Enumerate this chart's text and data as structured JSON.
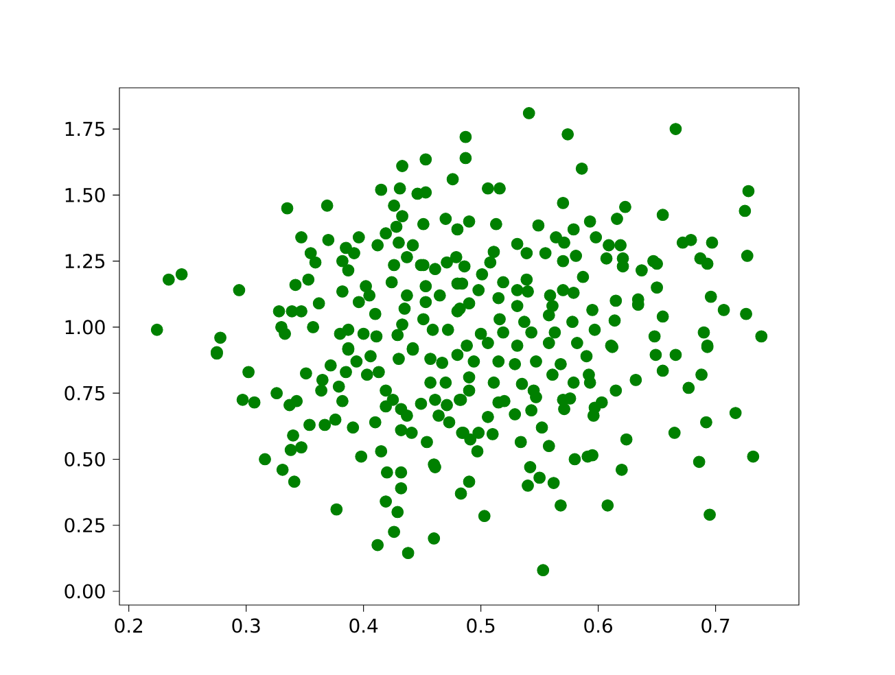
{
  "chart_data": {
    "type": "scatter",
    "color": "#008000",
    "xlim": [
      0.192,
      0.771
    ],
    "ylim": [
      -0.052,
      1.906
    ],
    "xticks": [
      0.2,
      0.3,
      0.4,
      0.5,
      0.6,
      0.7
    ],
    "yticks": [
      {
        "value": 0,
        "label": "0.00"
      },
      {
        "value": 0.25,
        "label": "0.25"
      },
      {
        "value": 0.5,
        "label": "0.50"
      },
      {
        "value": 0.75,
        "label": "0.75"
      },
      {
        "value": 1,
        "label": "1.00"
      },
      {
        "value": 1.25,
        "label": "1.25"
      },
      {
        "value": 1.5,
        "label": "1.50"
      },
      {
        "value": 1.75,
        "label": "1.75"
      }
    ],
    "x": [
      0.224,
      0.234,
      0.245,
      0.294,
      0.278,
      0.275,
      0.335,
      0.369,
      0.347,
      0.37,
      0.355,
      0.359,
      0.353,
      0.342,
      0.328,
      0.339,
      0.347,
      0.362,
      0.33,
      0.333,
      0.357,
      0.385,
      0.396,
      0.392,
      0.382,
      0.387,
      0.412,
      0.415,
      0.431,
      0.433,
      0.453,
      0.446,
      0.453,
      0.426,
      0.433,
      0.428,
      0.419,
      0.43,
      0.442,
      0.437,
      0.426,
      0.451,
      0.476,
      0.451,
      0.461,
      0.471,
      0.479,
      0.47,
      0.48,
      0.449,
      0.382,
      0.396,
      0.402,
      0.405,
      0.41,
      0.424,
      0.437,
      0.435,
      0.433,
      0.429,
      0.453,
      0.453,
      0.465,
      0.451,
      0.459,
      0.472,
      0.48,
      0.482,
      0.38,
      0.387,
      0.4,
      0.411,
      0.442,
      0.387,
      0.275,
      0.302,
      0.297,
      0.307,
      0.326,
      0.337,
      0.343,
      0.351,
      0.34,
      0.338,
      0.347,
      0.316,
      0.331,
      0.341,
      0.354,
      0.367,
      0.376,
      0.365,
      0.364,
      0.372,
      0.379,
      0.382,
      0.385,
      0.387,
      0.394,
      0.406,
      0.403,
      0.413,
      0.391,
      0.41,
      0.398,
      0.415,
      0.42,
      0.432,
      0.432,
      0.419,
      0.429,
      0.426,
      0.412,
      0.438,
      0.46,
      0.377,
      0.43,
      0.442,
      0.419,
      0.425,
      0.419,
      0.432,
      0.437,
      0.432,
      0.441,
      0.454,
      0.46,
      0.461,
      0.449,
      0.461,
      0.457,
      0.464,
      0.473,
      0.471,
      0.47,
      0.457,
      0.467,
      0.483,
      0.484,
      0.483,
      0.541,
      0.574,
      0.666,
      0.586,
      0.487,
      0.487,
      0.506,
      0.516,
      0.57,
      0.623,
      0.655,
      0.728,
      0.725,
      0.49,
      0.513,
      0.549,
      0.579,
      0.593,
      0.616,
      0.598,
      0.564,
      0.571,
      0.531,
      0.511,
      0.539,
      0.555,
      0.581,
      0.57,
      0.609,
      0.619,
      0.607,
      0.621,
      0.621,
      0.637,
      0.647,
      0.65,
      0.672,
      0.679,
      0.697,
      0.687,
      0.693,
      0.727,
      0.486,
      0.508,
      0.501,
      0.519,
      0.539,
      0.587,
      0.484,
      0.498,
      0.515,
      0.531,
      0.54,
      0.559,
      0.57,
      0.579,
      0.615,
      0.634,
      0.65,
      0.696,
      0.49,
      0.531,
      0.561,
      0.595,
      0.634,
      0.707,
      0.726,
      0.655,
      0.48,
      0.516,
      0.537,
      0.558,
      0.578,
      0.597,
      0.614,
      0.5,
      0.519,
      0.543,
      0.563,
      0.69,
      0.739,
      0.648,
      0.488,
      0.506,
      0.531,
      0.558,
      0.582,
      0.693,
      0.611,
      0.48,
      0.494,
      0.515,
      0.529,
      0.547,
      0.568,
      0.59,
      0.612,
      0.649,
      0.666,
      0.693,
      0.49,
      0.511,
      0.535,
      0.545,
      0.561,
      0.579,
      0.593,
      0.592,
      0.632,
      0.655,
      0.688,
      0.677,
      0.615,
      0.49,
      0.482,
      0.515,
      0.52,
      0.547,
      0.57,
      0.571,
      0.576,
      0.603,
      0.597,
      0.596,
      0.529,
      0.543,
      0.506,
      0.552,
      0.485,
      0.498,
      0.51,
      0.491,
      0.497,
      0.534,
      0.558,
      0.624,
      0.665,
      0.692,
      0.717,
      0.58,
      0.591,
      0.595,
      0.62,
      0.686,
      0.732,
      0.542,
      0.55,
      0.54,
      0.562,
      0.49,
      0.568,
      0.608,
      0.503,
      0.695,
      0.553
    ],
    "values": [
      0.99,
      1.18,
      1.2,
      1.14,
      0.96,
      0.905,
      1.45,
      1.46,
      1.34,
      1.33,
      1.28,
      1.245,
      1.18,
      1.16,
      1.06,
      1.06,
      1.06,
      1.09,
      1.0,
      0.975,
      1.0,
      1.3,
      1.34,
      1.28,
      1.25,
      1.215,
      1.31,
      1.52,
      1.525,
      1.61,
      1.635,
      1.505,
      1.51,
      1.46,
      1.42,
      1.38,
      1.355,
      1.32,
      1.31,
      1.265,
      1.235,
      1.39,
      1.56,
      1.235,
      1.22,
      1.245,
      1.265,
      1.41,
      1.37,
      1.235,
      1.135,
      1.095,
      1.155,
      1.12,
      1.05,
      1.17,
      1.12,
      1.07,
      1.01,
      0.97,
      1.155,
      1.095,
      1.12,
      1.03,
      0.99,
      0.99,
      1.165,
      1.07,
      0.975,
      0.99,
      0.975,
      0.965,
      0.92,
      0.92,
      0.9,
      0.83,
      0.725,
      0.715,
      0.75,
      0.705,
      0.72,
      0.825,
      0.59,
      0.535,
      0.545,
      0.5,
      0.46,
      0.415,
      0.63,
      0.63,
      0.65,
      0.8,
      0.76,
      0.855,
      0.775,
      0.72,
      0.83,
      0.915,
      0.87,
      0.89,
      0.82,
      0.83,
      0.62,
      0.64,
      0.51,
      0.53,
      0.45,
      0.45,
      0.39,
      0.34,
      0.3,
      0.225,
      0.175,
      0.145,
      0.2,
      0.31,
      0.88,
      0.915,
      0.76,
      0.725,
      0.7,
      0.69,
      0.665,
      0.61,
      0.6,
      0.565,
      0.48,
      0.47,
      0.71,
      0.725,
      0.79,
      0.665,
      0.64,
      0.705,
      0.79,
      0.88,
      0.865,
      0.725,
      0.6,
      0.37,
      1.81,
      1.73,
      1.75,
      1.6,
      1.72,
      1.64,
      1.525,
      1.525,
      1.47,
      1.455,
      1.425,
      1.515,
      1.44,
      1.4,
      1.39,
      1.385,
      1.37,
      1.4,
      1.41,
      1.34,
      1.34,
      1.32,
      1.315,
      1.285,
      1.28,
      1.28,
      1.27,
      1.25,
      1.31,
      1.31,
      1.26,
      1.26,
      1.23,
      1.215,
      1.25,
      1.24,
      1.32,
      1.33,
      1.32,
      1.26,
      1.24,
      1.27,
      1.23,
      1.245,
      1.2,
      1.17,
      1.18,
      1.19,
      1.165,
      1.14,
      1.11,
      1.14,
      1.135,
      1.12,
      1.14,
      1.13,
      1.1,
      1.105,
      1.15,
      1.115,
      1.09,
      1.08,
      1.08,
      1.065,
      1.085,
      1.065,
      1.05,
      1.04,
      1.06,
      1.03,
      1.02,
      1.045,
      1.02,
      0.99,
      1.025,
      0.975,
      0.98,
      0.98,
      0.98,
      0.98,
      0.965,
      0.965,
      0.93,
      0.94,
      0.93,
      0.94,
      0.94,
      0.93,
      0.93,
      0.895,
      0.87,
      0.87,
      0.86,
      0.87,
      0.86,
      0.89,
      0.925,
      0.895,
      0.895,
      0.925,
      0.81,
      0.79,
      0.785,
      0.76,
      0.82,
      0.79,
      0.79,
      0.82,
      0.8,
      0.835,
      0.82,
      0.77,
      0.76,
      0.76,
      0.725,
      0.715,
      0.72,
      0.735,
      0.725,
      0.69,
      0.73,
      0.715,
      0.695,
      0.665,
      0.67,
      0.685,
      0.66,
      0.62,
      0.6,
      0.6,
      0.595,
      0.575,
      0.53,
      0.565,
      0.55,
      0.575,
      0.6,
      0.64,
      0.675,
      0.5,
      0.51,
      0.515,
      0.46,
      0.49,
      0.51,
      0.47,
      0.43,
      0.4,
      0.41,
      0.415,
      0.325,
      0.325,
      0.285,
      0.29,
      0.08
    ]
  }
}
